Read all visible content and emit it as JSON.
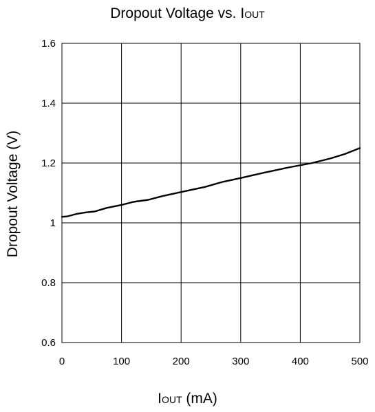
{
  "chart_data": {
    "type": "line",
    "title": {
      "main": "Dropout Voltage vs. I",
      "sub": "OUT"
    },
    "xlabel": {
      "main": "I",
      "sub": "OUT",
      "rest": " (mA)"
    },
    "ylabel": "Dropout Voltage (V)",
    "xlim": [
      0,
      500
    ],
    "ylim": [
      0.6,
      1.6
    ],
    "x_ticks": [
      0,
      100,
      200,
      300,
      400,
      500
    ],
    "y_ticks": [
      0.6,
      0.8,
      1.0,
      1.2,
      1.4,
      1.6
    ],
    "x_tick_labels": [
      "0",
      "100",
      "200",
      "300",
      "400",
      "500"
    ],
    "y_tick_labels": [
      "0.6",
      "0.8",
      "1",
      "1.2",
      "1.4",
      "1.6"
    ],
    "grid": true,
    "series": [
      {
        "color": "#000000",
        "x": [
          0,
          10,
          25,
          40,
          55,
          75,
          100,
          120,
          145,
          170,
          200,
          240,
          270,
          300,
          340,
          380,
          420,
          450,
          475,
          500
        ],
        "y": [
          1.02,
          1.022,
          1.03,
          1.035,
          1.038,
          1.05,
          1.06,
          1.07,
          1.077,
          1.09,
          1.103,
          1.12,
          1.137,
          1.15,
          1.168,
          1.185,
          1.2,
          1.215,
          1.23,
          1.25
        ]
      }
    ]
  }
}
